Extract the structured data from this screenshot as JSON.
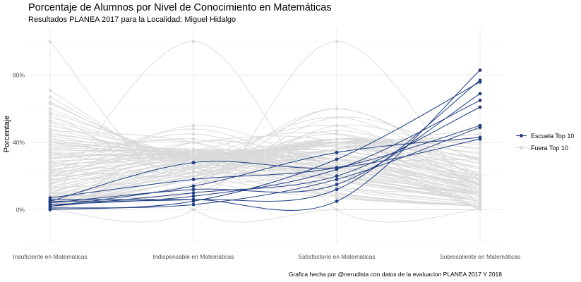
{
  "header": {
    "title": "Porcentaje de Alumnos por Nivel de Conocimiento en Matemáticas",
    "subtitle": "Resultados PLANEA  2017 para la Localidad:  Miguel Hidalgo",
    "caption": "Grafica hecha por @nerudista con datos de la evaluacion PLANEA 2017 Y 2018"
  },
  "chart_data": {
    "type": "line",
    "ylabel": "Porcentaje",
    "categories": [
      "Insuficiente en Matemáticas",
      "Indispensable en Matemáticas",
      "Satisfactorio en Matemáticas",
      "Sobresaliente en Matemáticas"
    ],
    "y_ticks": [
      0,
      40,
      80
    ],
    "y_tick_labels": [
      "0%",
      "40%",
      "80%"
    ],
    "ylim": [
      -20,
      108
    ],
    "grid": true,
    "smooth_curves": true,
    "legend_position": "right",
    "legend": [
      {
        "name": "Escuela Top 10",
        "color": "#1f3d82"
      },
      {
        "name": "Fuera Top 10",
        "color": "#d9d9d9"
      }
    ],
    "series": [
      {
        "name": "Escuela Top 10",
        "color": "#1f3d82",
        "values": [
          [
            6,
            6,
            5,
            83
          ],
          [
            5,
            6,
            12,
            77
          ],
          [
            4,
            12,
            15,
            69
          ],
          [
            7,
            18,
            25,
            50
          ],
          [
            3,
            8,
            24,
            65
          ],
          [
            2,
            10,
            20,
            61
          ],
          [
            5,
            28,
            25,
            42
          ],
          [
            0,
            5,
            30,
            76
          ],
          [
            1,
            3,
            18,
            49
          ],
          [
            2,
            14,
            34,
            43
          ]
        ]
      },
      {
        "name": "Fuera Top 10",
        "color": "#d9d9d9",
        "values": [
          [
            100,
            0,
            0,
            0
          ],
          [
            5,
            100,
            0,
            0
          ],
          [
            0,
            0,
            100,
            0
          ],
          [
            67,
            23,
            8,
            2
          ],
          [
            71,
            20,
            7,
            2
          ],
          [
            63,
            27,
            8,
            2
          ],
          [
            60,
            28,
            10,
            2
          ],
          [
            58,
            30,
            10,
            2
          ],
          [
            55,
            30,
            12,
            3
          ],
          [
            53,
            30,
            13,
            4
          ],
          [
            50,
            32,
            14,
            4
          ],
          [
            48,
            30,
            17,
            5
          ],
          [
            46,
            31,
            18,
            5
          ],
          [
            45,
            33,
            17,
            5
          ],
          [
            44,
            30,
            20,
            6
          ],
          [
            42,
            34,
            18,
            6
          ],
          [
            41,
            32,
            20,
            7
          ],
          [
            40,
            33,
            20,
            7
          ],
          [
            39,
            31,
            22,
            8
          ],
          [
            38,
            35,
            20,
            7
          ],
          [
            37,
            33,
            22,
            8
          ],
          [
            36,
            32,
            23,
            9
          ],
          [
            35,
            34,
            22,
            9
          ],
          [
            34,
            30,
            26,
            10
          ],
          [
            33,
            36,
            21,
            10
          ],
          [
            32,
            32,
            25,
            11
          ],
          [
            31,
            33,
            25,
            11
          ],
          [
            30,
            35,
            24,
            11
          ],
          [
            29,
            31,
            28,
            12
          ],
          [
            28,
            34,
            26,
            12
          ],
          [
            27,
            30,
            30,
            13
          ],
          [
            26,
            33,
            28,
            13
          ],
          [
            25,
            35,
            27,
            13
          ],
          [
            24,
            32,
            30,
            14
          ],
          [
            23,
            34,
            29,
            14
          ],
          [
            22,
            30,
            33,
            15
          ],
          [
            21,
            36,
            28,
            15
          ],
          [
            20,
            32,
            32,
            16
          ],
          [
            19,
            35,
            30,
            16
          ],
          [
            18,
            30,
            35,
            17
          ],
          [
            17,
            33,
            33,
            17
          ],
          [
            16,
            31,
            35,
            18
          ],
          [
            15,
            34,
            33,
            18
          ],
          [
            14,
            29,
            38,
            19
          ],
          [
            13,
            32,
            35,
            20
          ],
          [
            12,
            30,
            37,
            21
          ],
          [
            11,
            28,
            39,
            22
          ],
          [
            10,
            30,
            38,
            22
          ],
          [
            9,
            27,
            40,
            24
          ],
          [
            8,
            25,
            42,
            25
          ],
          [
            8,
            29,
            38,
            25
          ],
          [
            7,
            24,
            42,
            27
          ],
          [
            6,
            26,
            40,
            28
          ],
          [
            6,
            22,
            42,
            30
          ],
          [
            5,
            24,
            40,
            31
          ],
          [
            5,
            20,
            42,
            33
          ],
          [
            4,
            22,
            40,
            34
          ],
          [
            4,
            18,
            42,
            36
          ],
          [
            3,
            20,
            40,
            37
          ],
          [
            3,
            18,
            40,
            39
          ],
          [
            2,
            18,
            40,
            40
          ],
          [
            2,
            20,
            36,
            42
          ],
          [
            1,
            18,
            36,
            45
          ],
          [
            1,
            15,
            36,
            48
          ],
          [
            64,
            25,
            9,
            2
          ],
          [
            57,
            18,
            20,
            5
          ],
          [
            52,
            25,
            18,
            5
          ],
          [
            47,
            40,
            10,
            3
          ],
          [
            43,
            22,
            25,
            10
          ],
          [
            36,
            40,
            14,
            10
          ],
          [
            33,
            25,
            30,
            12
          ],
          [
            30,
            42,
            18,
            10
          ],
          [
            28,
            22,
            35,
            15
          ],
          [
            26,
            45,
            20,
            9
          ],
          [
            24,
            20,
            38,
            18
          ],
          [
            22,
            48,
            20,
            10
          ],
          [
            20,
            25,
            40,
            15
          ],
          [
            18,
            22,
            45,
            15
          ],
          [
            15,
            50,
            25,
            10
          ],
          [
            13,
            20,
            47,
            20
          ],
          [
            10,
            35,
            45,
            10
          ],
          [
            8,
            15,
            60,
            17
          ],
          [
            6,
            30,
            50,
            14
          ],
          [
            4,
            12,
            55,
            29
          ],
          [
            2,
            25,
            55,
            18
          ],
          [
            0,
            30,
            40,
            30
          ],
          [
            0,
            20,
            60,
            20
          ],
          [
            0,
            40,
            30,
            30
          ],
          [
            20,
            40,
            40,
            0
          ],
          [
            40,
            30,
            30,
            0
          ],
          [
            33,
            33,
            34,
            0
          ],
          [
            10,
            10,
            50,
            30
          ]
        ]
      }
    ]
  }
}
